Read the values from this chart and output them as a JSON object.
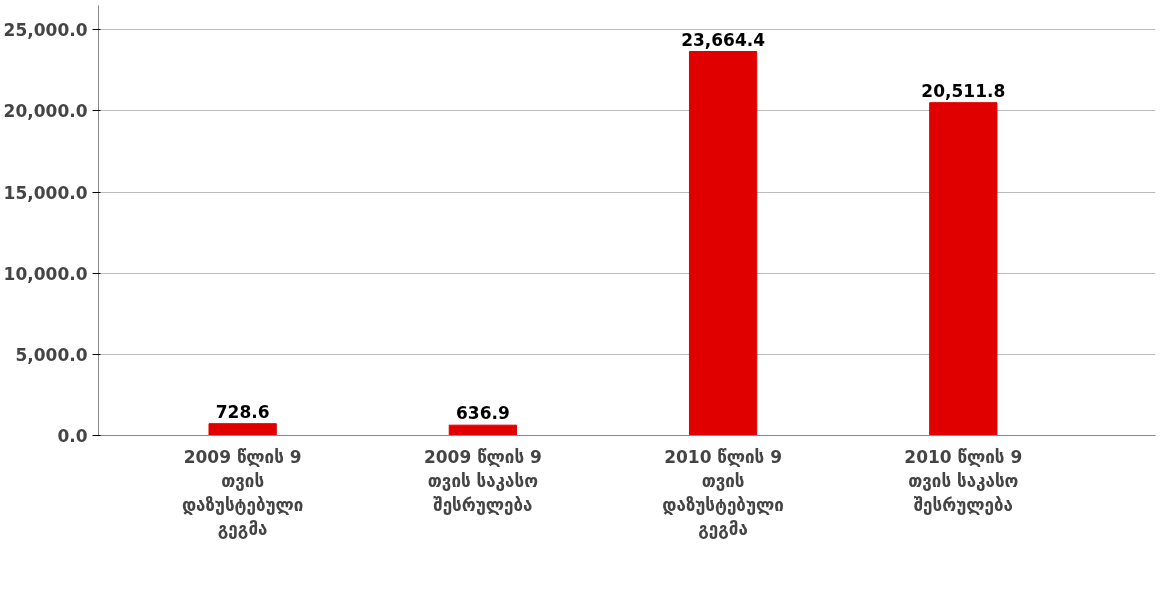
{
  "chart_data": {
    "type": "bar",
    "categories": [
      "2009 წლის 9 თვის დაზუსტებული გეგმა",
      "2009 წლის 9 თვის საკასო შესრულება",
      "2010 წლის 9 თვის დაზუსტებული გეგმა",
      "2010 წლის 9 თვის საკასო შესრულება"
    ],
    "values": [
      728.6,
      636.9,
      23664.4,
      20511.8
    ],
    "value_labels": [
      "728.6",
      "636.9",
      "23,664.4",
      "20,511.8"
    ],
    "color": "#e00000",
    "ylim": [
      0,
      26500
    ],
    "yticks": [
      {
        "value": 0,
        "label": "0.0"
      },
      {
        "value": 5000,
        "label": "5,000.0"
      },
      {
        "value": 10000,
        "label": "10,000.0"
      },
      {
        "value": 15000,
        "label": "15,000.0"
      },
      {
        "value": 20000,
        "label": "20,000.0"
      },
      {
        "value": 25000,
        "label": "25,000.0"
      }
    ],
    "grid": "y"
  }
}
